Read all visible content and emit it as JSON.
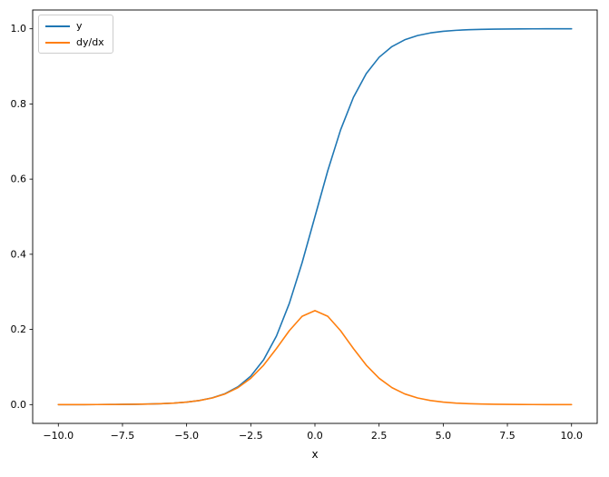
{
  "chart_data": {
    "type": "line",
    "title": "",
    "xlabel": "x",
    "ylabel": "",
    "grid": false,
    "xlim": [
      -11,
      11
    ],
    "ylim": [
      -0.05,
      1.05
    ],
    "x_ticks": [
      -10,
      -7.5,
      -5,
      -2.5,
      0,
      2.5,
      5,
      7.5,
      10
    ],
    "x_tick_labels": [
      "−10.0",
      "−7.5",
      "−5.0",
      "−2.5",
      "0.0",
      "2.5",
      "5.0",
      "7.5",
      "10.0"
    ],
    "y_ticks": [
      0,
      0.2,
      0.4,
      0.6,
      0.8,
      1.0
    ],
    "y_tick_labels": [
      "0.0",
      "0.2",
      "0.4",
      "0.6",
      "0.8",
      "1.0"
    ],
    "legend": {
      "position": "upper-left",
      "entries": [
        {
          "label": "y",
          "color": "#1f77b4"
        },
        {
          "label": "dy/dx",
          "color": "#ff7f0e"
        }
      ]
    },
    "x": [
      -10,
      -9.5,
      -9,
      -8.5,
      -8,
      -7.5,
      -7,
      -6.5,
      -6,
      -5.5,
      -5,
      -4.5,
      -4,
      -3.5,
      -3,
      -2.5,
      -2,
      -1.5,
      -1,
      -0.5,
      0,
      0.5,
      1,
      1.5,
      2,
      2.5,
      3,
      3.5,
      4,
      4.5,
      5,
      5.5,
      6,
      6.5,
      7,
      7.5,
      8,
      8.5,
      9,
      9.5,
      10
    ],
    "series": [
      {
        "name": "y",
        "color": "#1f77b4",
        "values": [
          5e-05,
          7e-05,
          0.00012,
          0.0002,
          0.00034,
          0.00055,
          0.00091,
          0.0015,
          0.00247,
          0.00407,
          0.00669,
          0.01099,
          0.01799,
          0.0293,
          0.04743,
          0.07586,
          0.1192,
          0.18243,
          0.26894,
          0.37754,
          0.5,
          0.62246,
          0.73106,
          0.81757,
          0.8808,
          0.92414,
          0.95257,
          0.9707,
          0.98201,
          0.98901,
          0.99331,
          0.99593,
          0.99753,
          0.9985,
          0.99909,
          0.99945,
          0.99966,
          0.9998,
          0.99988,
          0.99993,
          0.99995
        ]
      },
      {
        "name": "dy/dx",
        "color": "#ff7f0e",
        "values": [
          5e-05,
          7e-05,
          0.00012,
          0.0002,
          0.00034,
          0.00055,
          0.00091,
          0.0015,
          0.00246,
          0.00405,
          0.00665,
          0.01088,
          0.01767,
          0.02845,
          0.04518,
          0.0701,
          0.10499,
          0.14915,
          0.19661,
          0.235,
          0.25,
          0.235,
          0.19661,
          0.14915,
          0.10499,
          0.0701,
          0.04518,
          0.02845,
          0.01767,
          0.01088,
          0.00665,
          0.00405,
          0.00246,
          0.0015,
          0.00091,
          0.00055,
          0.00034,
          0.0002,
          0.00012,
          7e-05,
          5e-05
        ]
      }
    ]
  }
}
